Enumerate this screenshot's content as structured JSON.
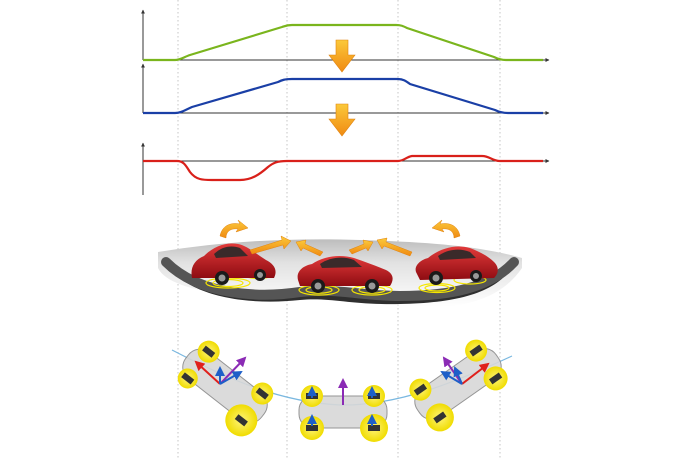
{
  "figure": {
    "panels": [
      "steering-input-graph",
      "intermediate-response-graph",
      "torque-vectoring-graph"
    ],
    "colors": {
      "graph_top": "#7ab51d",
      "graph_middle": "#1a3fa6",
      "graph_bottom": "#d9201a",
      "arrow_orange": "#f5a01a",
      "car_red": "#c8161d",
      "road": "#3a3a3a",
      "curve": "#7ab8e0",
      "tire_highlight": "#f5e600",
      "vector_red": "#e0201c",
      "vector_purple": "#8b2bb5",
      "vector_blue": "#1e5fc8"
    },
    "icons": [
      "down-arrow-icon",
      "curved-arrow-icon",
      "car-icon",
      "tire-icon",
      "force-vector-icon"
    ]
  }
}
